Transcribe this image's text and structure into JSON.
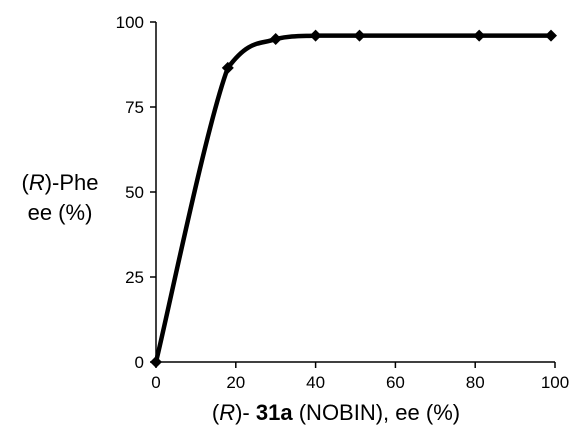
{
  "chart_data": {
    "type": "line",
    "xlabel": {
      "prefix_open": "(",
      "prefix_italic": "R",
      "prefix_close": ")-",
      "bold": "31a",
      "rest": "(NOBIN), ee (%)"
    },
    "ylabel": {
      "line1_open": "(",
      "line1_italic": "R",
      "line1_close": ")-Phe",
      "line2": "ee (%)"
    },
    "xlim": [
      0,
      100
    ],
    "ylim": [
      0,
      100
    ],
    "x_ticks": [
      0,
      20,
      40,
      60,
      80,
      100
    ],
    "y_ticks": [
      0,
      25,
      50,
      75,
      100
    ],
    "grid": false,
    "legend": "none",
    "series": [
      {
        "x": [
          0,
          18,
          30,
          40,
          51,
          81,
          99
        ],
        "y": [
          0,
          86.5,
          95,
          96,
          96,
          96,
          96
        ],
        "color": "#000000",
        "marker": "diamond",
        "smooth": true
      }
    ]
  }
}
